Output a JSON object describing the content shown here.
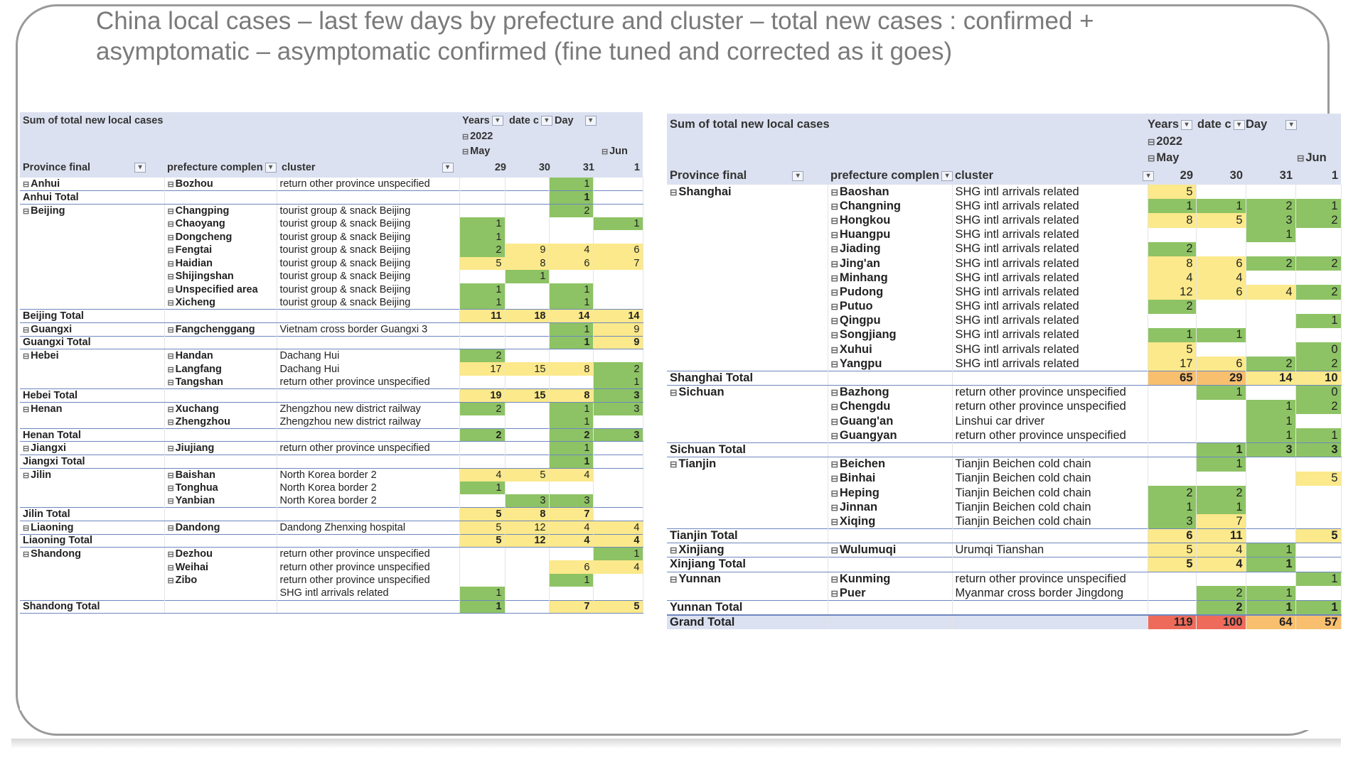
{
  "title": "China local cases – last few days by prefecture and cluster – total new cases : confirmed + asymptomatic – asymptomatic confirmed (fine tuned and corrected as it goes)",
  "colors": {
    "header_bg": "#dbe1f0",
    "low": "#8dc364",
    "mid": "#fbe98b",
    "high": "#f8bf6f",
    "max": "#ee6b5b"
  },
  "left": {
    "sum_label": "Sum of total new local cases",
    "years_label": "Years",
    "date_label": "date c",
    "day_label": "Day",
    "year": "2022",
    "month1": "May",
    "month2": "Jun",
    "col_province": "Province final",
    "col_prefecture": "prefecture complen",
    "col_cluster": "cluster",
    "days": [
      "29",
      "30",
      "31",
      "1"
    ],
    "rows": [
      {
        "t": "d",
        "prov": "Anhui",
        "pref": "Bozhou",
        "cl": "return other province unspecified",
        "v": [
          "",
          "",
          "1",
          ""
        ]
      },
      {
        "t": "t",
        "prov": "Anhui Total",
        "pref": "",
        "cl": "",
        "v": [
          "",
          "",
          "1",
          ""
        ]
      },
      {
        "t": "d",
        "prov": "Beijing",
        "pref": "Changping",
        "cl": "tourist group & snack Beijing",
        "v": [
          "",
          "",
          "2",
          ""
        ]
      },
      {
        "t": "d",
        "prov": "",
        "pref": "Chaoyang",
        "cl": "tourist group & snack Beijing",
        "v": [
          "1",
          "",
          "",
          "1"
        ]
      },
      {
        "t": "d",
        "prov": "",
        "pref": "Dongcheng",
        "cl": "tourist group & snack Beijing",
        "v": [
          "1",
          "",
          "",
          ""
        ]
      },
      {
        "t": "d",
        "prov": "",
        "pref": "Fengtai",
        "cl": "tourist group & snack Beijing",
        "v": [
          "2",
          "9",
          "4",
          "6"
        ]
      },
      {
        "t": "d",
        "prov": "",
        "pref": "Haidian",
        "cl": "tourist group & snack Beijing",
        "v": [
          "5",
          "8",
          "6",
          "7"
        ]
      },
      {
        "t": "d",
        "prov": "",
        "pref": "Shijingshan",
        "cl": "tourist group & snack Beijing",
        "v": [
          "",
          "1",
          "",
          ""
        ]
      },
      {
        "t": "d",
        "prov": "",
        "pref": "Unspecified area",
        "cl": "tourist group & snack Beijing",
        "v": [
          "1",
          "",
          "1",
          ""
        ]
      },
      {
        "t": "d",
        "prov": "",
        "pref": "Xicheng",
        "cl": "tourist group & snack Beijing",
        "v": [
          "1",
          "",
          "1",
          ""
        ]
      },
      {
        "t": "t",
        "prov": "Beijing Total",
        "pref": "",
        "cl": "",
        "v": [
          "11",
          "18",
          "14",
          "14"
        ]
      },
      {
        "t": "d",
        "prov": "Guangxi",
        "pref": "Fangchenggang",
        "cl": "Vietnam cross border Guangxi 3",
        "v": [
          "",
          "",
          "1",
          "9"
        ]
      },
      {
        "t": "t",
        "prov": "Guangxi Total",
        "pref": "",
        "cl": "",
        "v": [
          "",
          "",
          "1",
          "9"
        ]
      },
      {
        "t": "d",
        "prov": "Hebei",
        "pref": "Handan",
        "cl": "Dachang Hui",
        "v": [
          "2",
          "",
          "",
          ""
        ]
      },
      {
        "t": "d",
        "prov": "",
        "pref": "Langfang",
        "cl": "Dachang Hui",
        "v": [
          "17",
          "15",
          "8",
          "2"
        ]
      },
      {
        "t": "d",
        "prov": "",
        "pref": "Tangshan",
        "cl": "return other province unspecified",
        "v": [
          "",
          "",
          "",
          "1"
        ]
      },
      {
        "t": "t",
        "prov": "Hebei Total",
        "pref": "",
        "cl": "",
        "v": [
          "19",
          "15",
          "8",
          "3"
        ]
      },
      {
        "t": "d",
        "prov": "Henan",
        "pref": "Xuchang",
        "cl": "Zhengzhou new district railway",
        "v": [
          "2",
          "",
          "1",
          "3"
        ]
      },
      {
        "t": "d",
        "prov": "",
        "pref": "Zhengzhou",
        "cl": "Zhengzhou new district railway",
        "v": [
          "",
          "",
          "1",
          ""
        ]
      },
      {
        "t": "t",
        "prov": "Henan Total",
        "pref": "",
        "cl": "",
        "v": [
          "2",
          "",
          "2",
          "3"
        ]
      },
      {
        "t": "d",
        "prov": "Jiangxi",
        "pref": "Jiujiang",
        "cl": "return other province unspecified",
        "v": [
          "",
          "",
          "1",
          ""
        ]
      },
      {
        "t": "t",
        "prov": "Jiangxi Total",
        "pref": "",
        "cl": "",
        "v": [
          "",
          "",
          "1",
          ""
        ]
      },
      {
        "t": "d",
        "prov": "Jilin",
        "pref": "Baishan",
        "cl": "North Korea border 2",
        "v": [
          "4",
          "5",
          "4",
          ""
        ]
      },
      {
        "t": "d",
        "prov": "",
        "pref": "Tonghua",
        "cl": "North Korea border 2",
        "v": [
          "1",
          "",
          "",
          ""
        ]
      },
      {
        "t": "d",
        "prov": "",
        "pref": "Yanbian",
        "cl": "North Korea border 2",
        "v": [
          "",
          "3",
          "3",
          ""
        ]
      },
      {
        "t": "t",
        "prov": "Jilin Total",
        "pref": "",
        "cl": "",
        "v": [
          "5",
          "8",
          "7",
          ""
        ]
      },
      {
        "t": "d",
        "prov": "Liaoning",
        "pref": "Dandong",
        "cl": "Dandong Zhenxing hospital",
        "v": [
          "5",
          "12",
          "4",
          "4"
        ]
      },
      {
        "t": "t",
        "prov": "Liaoning Total",
        "pref": "",
        "cl": "",
        "v": [
          "5",
          "12",
          "4",
          "4"
        ]
      },
      {
        "t": "d",
        "prov": "Shandong",
        "pref": "Dezhou",
        "cl": "return other province unspecified",
        "v": [
          "",
          "",
          "",
          "1"
        ]
      },
      {
        "t": "d",
        "prov": "",
        "pref": "Weihai",
        "cl": "return other province unspecified",
        "v": [
          "",
          "",
          "6",
          "4"
        ]
      },
      {
        "t": "d",
        "prov": "",
        "pref": "Zibo",
        "cl": "return other province unspecified",
        "v": [
          "",
          "",
          "1",
          ""
        ]
      },
      {
        "t": "d",
        "prov": "",
        "pref": "",
        "cl": "SHG intl arrivals related",
        "v": [
          "1",
          "",
          "",
          ""
        ]
      },
      {
        "t": "t",
        "prov": "Shandong Total",
        "pref": "",
        "cl": "",
        "v": [
          "1",
          "",
          "7",
          "5"
        ]
      }
    ]
  },
  "right": {
    "sum_label": "Sum of total new local cases",
    "years_label": "Years",
    "date_label": "date c",
    "day_label": "Day",
    "year": "2022",
    "month1": "May",
    "month2": "Jun",
    "col_province": "Province final",
    "col_prefecture": "prefecture complen",
    "col_cluster": "cluster",
    "days": [
      "29",
      "30",
      "31",
      "1"
    ],
    "rows": [
      {
        "t": "d",
        "prov": "Shanghai",
        "pref": "Baoshan",
        "cl": "SHG intl arrivals related",
        "v": [
          "5",
          "",
          "",
          ""
        ]
      },
      {
        "t": "d",
        "prov": "",
        "pref": "Changning",
        "cl": "SHG intl arrivals related",
        "v": [
          "1",
          "1",
          "2",
          "1"
        ]
      },
      {
        "t": "d",
        "prov": "",
        "pref": "Hongkou",
        "cl": "SHG intl arrivals related",
        "v": [
          "8",
          "5",
          "3",
          "2"
        ]
      },
      {
        "t": "d",
        "prov": "",
        "pref": "Huangpu",
        "cl": "SHG intl arrivals related",
        "v": [
          "",
          "",
          "1",
          ""
        ]
      },
      {
        "t": "d",
        "prov": "",
        "pref": "Jiading",
        "cl": "SHG intl arrivals related",
        "v": [
          "2",
          "",
          "",
          ""
        ]
      },
      {
        "t": "d",
        "prov": "",
        "pref": "Jing'an",
        "cl": "SHG intl arrivals related",
        "v": [
          "8",
          "6",
          "2",
          "2"
        ]
      },
      {
        "t": "d",
        "prov": "",
        "pref": "Minhang",
        "cl": "SHG intl arrivals related",
        "v": [
          "4",
          "4",
          "",
          ""
        ]
      },
      {
        "t": "d",
        "prov": "",
        "pref": "Pudong",
        "cl": "SHG intl arrivals related",
        "v": [
          "12",
          "6",
          "4",
          "2"
        ]
      },
      {
        "t": "d",
        "prov": "",
        "pref": "Putuo",
        "cl": "SHG intl arrivals related",
        "v": [
          "2",
          "",
          "",
          ""
        ]
      },
      {
        "t": "d",
        "prov": "",
        "pref": "Qingpu",
        "cl": "SHG intl arrivals related",
        "v": [
          "",
          "",
          "",
          "1"
        ]
      },
      {
        "t": "d",
        "prov": "",
        "pref": "Songjiang",
        "cl": "SHG intl arrivals related",
        "v": [
          "1",
          "1",
          "",
          ""
        ]
      },
      {
        "t": "d",
        "prov": "",
        "pref": "Xuhui",
        "cl": "SHG intl arrivals related",
        "v": [
          "5",
          "",
          "",
          "0"
        ]
      },
      {
        "t": "d",
        "prov": "",
        "pref": "Yangpu",
        "cl": "SHG intl arrivals related",
        "v": [
          "17",
          "6",
          "2",
          "2"
        ]
      },
      {
        "t": "t",
        "prov": "Shanghai Total",
        "pref": "",
        "cl": "",
        "v": [
          "65",
          "29",
          "14",
          "10"
        ]
      },
      {
        "t": "d",
        "prov": "Sichuan",
        "pref": "Bazhong",
        "cl": "return other province unspecified",
        "v": [
          "",
          "1",
          "",
          "0"
        ]
      },
      {
        "t": "d",
        "prov": "",
        "pref": "Chengdu",
        "cl": "return other province unspecified",
        "v": [
          "",
          "",
          "1",
          "2"
        ]
      },
      {
        "t": "d",
        "prov": "",
        "pref": "Guang'an",
        "cl": "Linshui car driver",
        "v": [
          "",
          "",
          "1",
          ""
        ]
      },
      {
        "t": "d",
        "prov": "",
        "pref": "Guangyan",
        "cl": "return other province unspecified",
        "v": [
          "",
          "",
          "1",
          "1"
        ]
      },
      {
        "t": "t",
        "prov": "Sichuan Total",
        "pref": "",
        "cl": "",
        "v": [
          "",
          "1",
          "3",
          "3"
        ]
      },
      {
        "t": "d",
        "prov": "Tianjin",
        "pref": "Beichen",
        "cl": "Tianjin Beichen cold chain",
        "v": [
          "",
          "1",
          "",
          ""
        ]
      },
      {
        "t": "d",
        "prov": "",
        "pref": "Binhai",
        "cl": "Tianjin Beichen cold chain",
        "v": [
          "",
          "",
          "",
          "5"
        ]
      },
      {
        "t": "d",
        "prov": "",
        "pref": "Heping",
        "cl": "Tianjin Beichen cold chain",
        "v": [
          "2",
          "2",
          "",
          ""
        ]
      },
      {
        "t": "d",
        "prov": "",
        "pref": "Jinnan",
        "cl": "Tianjin Beichen cold chain",
        "v": [
          "1",
          "1",
          "",
          ""
        ]
      },
      {
        "t": "d",
        "prov": "",
        "pref": "Xiqing",
        "cl": "Tianjin Beichen cold chain",
        "v": [
          "3",
          "7",
          "",
          ""
        ]
      },
      {
        "t": "t",
        "prov": "Tianjin Total",
        "pref": "",
        "cl": "",
        "v": [
          "6",
          "11",
          "",
          "5"
        ]
      },
      {
        "t": "d",
        "prov": "Xinjiang",
        "pref": "Wulumuqi",
        "cl": "Urumqi Tianshan",
        "v": [
          "5",
          "4",
          "1",
          ""
        ]
      },
      {
        "t": "t",
        "prov": "Xinjiang Total",
        "pref": "",
        "cl": "",
        "v": [
          "5",
          "4",
          "1",
          ""
        ]
      },
      {
        "t": "d",
        "prov": "Yunnan",
        "pref": "Kunming",
        "cl": "return other province unspecified",
        "v": [
          "",
          "",
          "",
          "1"
        ]
      },
      {
        "t": "d",
        "prov": "",
        "pref": "Puer",
        "cl": "Myanmar cross border Jingdong",
        "v": [
          "",
          "2",
          "1",
          ""
        ]
      },
      {
        "t": "t",
        "prov": "Yunnan Total",
        "pref": "",
        "cl": "",
        "v": [
          "",
          "2",
          "1",
          "1"
        ]
      },
      {
        "t": "g",
        "prov": "Grand Total",
        "pref": "",
        "cl": "",
        "v": [
          "119",
          "100",
          "64",
          "57"
        ]
      }
    ]
  }
}
